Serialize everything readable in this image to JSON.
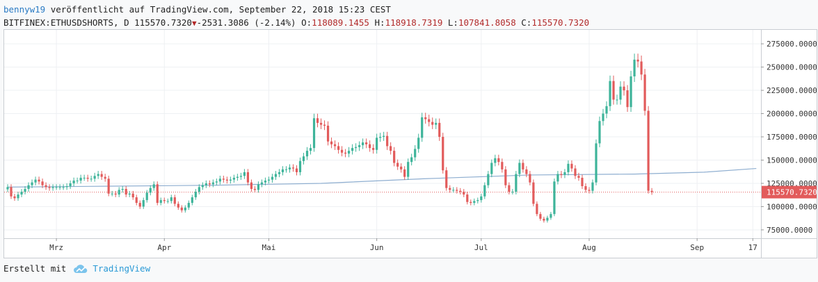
{
  "header": {
    "author": "bennyw19",
    "published_text": "veröffentlicht auf TradingView.com, September 22, 2018 15:23 CEST",
    "symbol_interval": "BITFINEX:ETHUSDSHORTS, D",
    "last": "115570.7320",
    "change": "-2531.3086 (-2.14%)",
    "open_label": "O:",
    "open": "118089.1455",
    "high_label": "H:",
    "high": "118918.7319",
    "low_label": "L:",
    "low": "107841.8058",
    "close_label": "C:",
    "close": "115570.7320"
  },
  "footer": {
    "created_with": "Erstellt mit",
    "brand": "TradingView"
  },
  "colors": {
    "up": "#3eb49a",
    "down": "#e25b5b",
    "ma": "#8eaed0",
    "last_price_badge": "#e25b5b",
    "grid": "#eef0f3"
  },
  "chart_data": {
    "type": "candlestick",
    "y_ticks": [
      "275000.0000",
      "250000.0000",
      "225000.0000",
      "200000.0000",
      "175000.0000",
      "150000.0000",
      "125000.0000",
      "100000.0000",
      "75000.0000"
    ],
    "y_tick_values": [
      275000,
      250000,
      225000,
      200000,
      175000,
      150000,
      125000,
      100000,
      75000
    ],
    "ylim": [
      66000,
      290000
    ],
    "x_ticks": [
      {
        "label": "Mrz",
        "day": 14
      },
      {
        "label": "Apr",
        "day": 45
      },
      {
        "label": "Mai",
        "day": 75
      },
      {
        "label": "Jun",
        "day": 106
      },
      {
        "label": "Jul",
        "day": 136
      },
      {
        "label": "Aug",
        "day": 167
      },
      {
        "label": "Sep",
        "day": 198
      },
      {
        "label": "17",
        "day": 214
      }
    ],
    "last_price_label": "115570.7320",
    "last_price": 115570.732,
    "grid": true,
    "closes": [
      121000,
      111000,
      109000,
      113000,
      116000,
      119000,
      123000,
      126000,
      129000,
      127000,
      123000,
      121000,
      120000,
      121000,
      121000,
      121000,
      121000,
      122000,
      125000,
      128000,
      128000,
      131000,
      131000,
      130000,
      130000,
      133000,
      135000,
      132000,
      130000,
      114000,
      114000,
      113000,
      118000,
      119000,
      113000,
      114000,
      110000,
      104000,
      100000,
      107000,
      115000,
      120000,
      124000,
      104000,
      107000,
      106000,
      106000,
      110000,
      103000,
      99000,
      96000,
      99000,
      104000,
      110000,
      116000,
      121000,
      123000,
      125000,
      124000,
      126000,
      127000,
      130000,
      129000,
      128000,
      129000,
      131000,
      132000,
      133000,
      137000,
      126000,
      119000,
      118000,
      124000,
      126000,
      128000,
      129000,
      132000,
      135000,
      137000,
      140000,
      140000,
      142000,
      141000,
      137000,
      149000,
      154000,
      160000,
      163000,
      195000,
      190000,
      188000,
      187000,
      170000,
      167000,
      165000,
      161000,
      158000,
      157000,
      160000,
      163000,
      164000,
      166000,
      169000,
      167000,
      163000,
      161000,
      174000,
      175000,
      176000,
      165000,
      160000,
      147000,
      143000,
      140000,
      132000,
      148000,
      153000,
      162000,
      174000,
      196000,
      194000,
      191000,
      188000,
      190000,
      175000,
      139000,
      120000,
      118000,
      118000,
      117000,
      116000,
      113000,
      105000,
      104000,
      106000,
      107000,
      111000,
      123000,
      135000,
      147000,
      152000,
      148000,
      140000,
      123000,
      116000,
      116000,
      135000,
      147000,
      140000,
      135000,
      126000,
      103000,
      92000,
      87000,
      85000,
      88000,
      92000,
      127000,
      135000,
      134000,
      137000,
      146000,
      141000,
      133000,
      131000,
      122000,
      118000,
      117000,
      126000,
      168000,
      192000,
      200000,
      208000,
      235000,
      215000,
      215000,
      229000,
      225000,
      207000,
      240000,
      258000,
      256000,
      242000,
      203000,
      117000,
      115570.732
    ],
    "ma_day": [
      0,
      30,
      60,
      90,
      120,
      150,
      180,
      200,
      215
    ],
    "ma_values": [
      121000,
      122000,
      123000,
      125000,
      130000,
      134000,
      135000,
      137000,
      141000
    ],
    "ohlc_dates_start": "2018-02-26"
  }
}
